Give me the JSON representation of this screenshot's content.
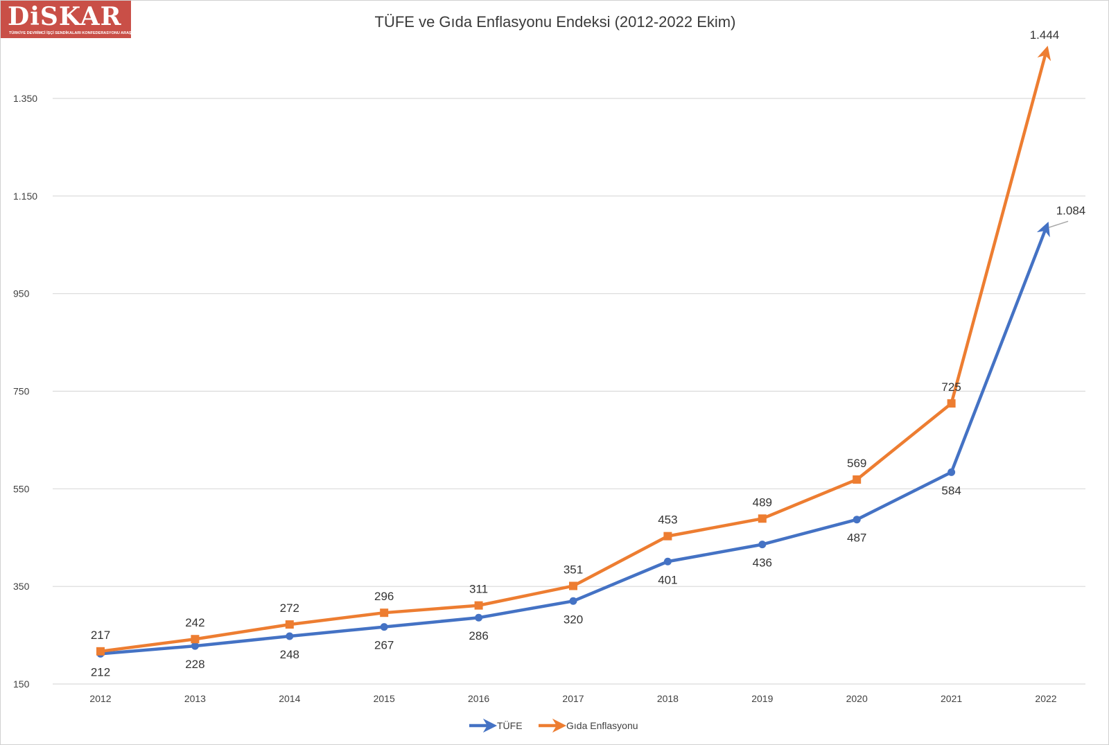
{
  "logo": {
    "text": "DiSKAR",
    "subtitle": "TÜRKİYE DEVRİMCİ İŞÇİ SENDİKALARI KONFEDERASYONU ARAŞTIRMA MERKEZİ"
  },
  "chart_data": {
    "type": "line",
    "title": "TÜFE ve Gıda Enflasyonu Endeksi (2012-2022 Ekim)",
    "xlabel": "",
    "ylabel": "",
    "categories": [
      "2012",
      "2013",
      "2014",
      "2015",
      "2016",
      "2017",
      "2018",
      "2019",
      "2020",
      "2021",
      "2022"
    ],
    "ylim": [
      150,
      1500
    ],
    "yticks": [
      150,
      350,
      550,
      750,
      950,
      1150,
      1350
    ],
    "ytick_labels": [
      "150",
      "350",
      "550",
      "750",
      "950",
      "1.150",
      "1.350"
    ],
    "grid": true,
    "legend_position": "bottom",
    "series": [
      {
        "name": "TÜFE",
        "color": "#4472c4",
        "marker": "circle",
        "values": [
          212,
          228,
          248,
          267,
          286,
          320,
          401,
          436,
          487,
          584,
          1084
        ],
        "labels": [
          "212",
          "228",
          "248",
          "267",
          "286",
          "320",
          "401",
          "436",
          "487",
          "584",
          "1.084"
        ]
      },
      {
        "name": "Gıda Enflasyonu",
        "color": "#ed7d31",
        "marker": "square",
        "values": [
          217,
          242,
          272,
          296,
          311,
          351,
          453,
          489,
          569,
          725,
          1444
        ],
        "labels": [
          "217",
          "242",
          "272",
          "296",
          "311",
          "351",
          "453",
          "489",
          "569",
          "725",
          "1.444"
        ]
      }
    ]
  }
}
